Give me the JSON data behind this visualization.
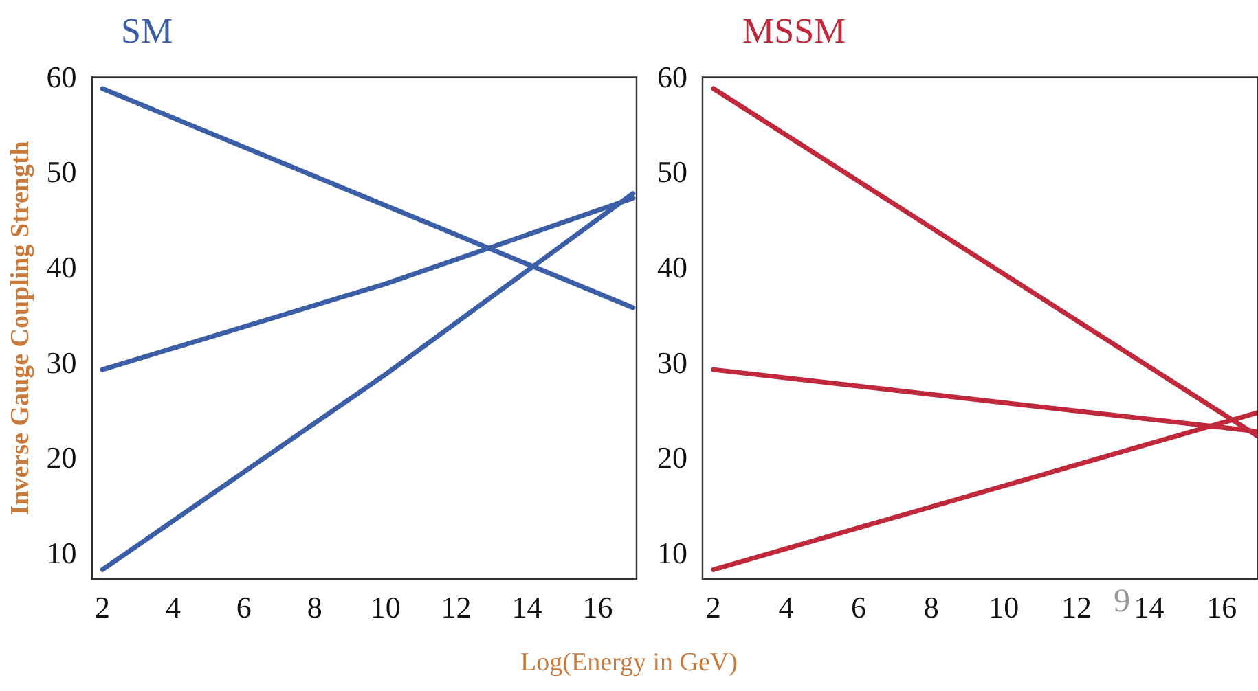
{
  "chart_data": [
    {
      "type": "line",
      "title": "SM",
      "ylabel": "Inverse Gauge Coupling Strength",
      "xlabel": "Log(Energy in GeV)",
      "xlim": [
        1.7,
        17.1
      ],
      "xticks": [
        2,
        4,
        6,
        8,
        10,
        12,
        14,
        16
      ],
      "ylim": [
        7.5,
        60.2
      ],
      "yticks": [
        10,
        20,
        30,
        40,
        50,
        60
      ],
      "grid": false,
      "legend": false,
      "marker": "none",
      "line_style": "solid",
      "series": [
        {
          "color": "#3b5ea6",
          "x": [
            2,
            17
          ],
          "values": [
            59,
            36
          ]
        },
        {
          "color": "#3b5ea6",
          "x": [
            2,
            10,
            17
          ],
          "values": [
            29.5,
            38.5,
            47.5
          ]
        },
        {
          "color": "#3b5ea6",
          "x": [
            2,
            10,
            17
          ],
          "values": [
            8.5,
            29,
            48
          ]
        }
      ]
    },
    {
      "type": "line",
      "title": "MSSM",
      "xlim": [
        1.7,
        17
      ],
      "xticks": [
        2,
        4,
        6,
        8,
        10,
        12,
        14,
        16
      ],
      "ylim": [
        7.5,
        60.2
      ],
      "yticks": [
        10,
        20,
        30,
        40,
        50,
        60
      ],
      "grid": false,
      "legend": false,
      "marker": "none",
      "line_style": "solid",
      "annotations": [
        "9"
      ],
      "series": [
        {
          "color": "#c0283c",
          "x": [
            2,
            17
          ],
          "values": [
            59,
            22.5
          ]
        },
        {
          "color": "#c0283c",
          "x": [
            2,
            17
          ],
          "values": [
            29.5,
            23
          ]
        },
        {
          "color": "#c0283c",
          "x": [
            2,
            17
          ],
          "values": [
            8.5,
            25
          ]
        }
      ]
    }
  ]
}
